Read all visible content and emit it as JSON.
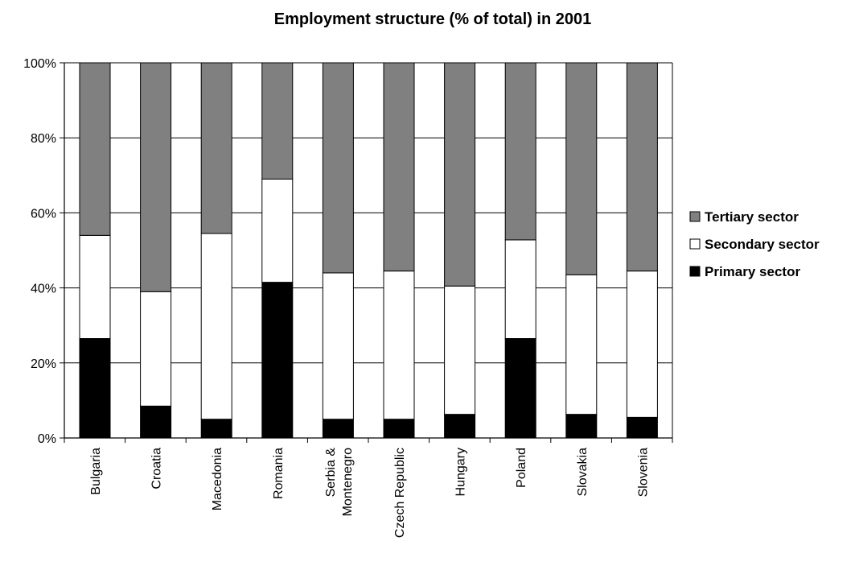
{
  "chart_data": {
    "type": "bar",
    "stacked": true,
    "title": "Employment structure (% of total) in 2001",
    "categories": [
      [
        "Bulgaria"
      ],
      [
        "Croatia"
      ],
      [
        "Macedonia"
      ],
      [
        "Romania"
      ],
      [
        "Serbia &",
        "Montenegro"
      ],
      [
        "Czech Republic"
      ],
      [
        "Hungary"
      ],
      [
        "Poland"
      ],
      [
        "Slovakia"
      ],
      [
        "Slovenia"
      ]
    ],
    "series": [
      {
        "name": "Primary sector",
        "color": "#000000",
        "values": [
          26.5,
          8.5,
          5,
          41.5,
          5,
          5,
          6.3,
          26.5,
          6.3,
          5.5
        ]
      },
      {
        "name": "Secondary sector",
        "color": "#ffffff",
        "values": [
          27.5,
          30.5,
          49.5,
          27.5,
          39,
          39.5,
          34.2,
          26.3,
          37.2,
          39
        ]
      },
      {
        "name": "Tertiary sector",
        "color": "#808080",
        "values": [
          46,
          61,
          45.5,
          31,
          56,
          55.5,
          59.5,
          47.2,
          56.5,
          55.5
        ]
      }
    ],
    "ylim": [
      0,
      100
    ],
    "yticks": [
      "0%",
      "20%",
      "40%",
      "60%",
      "80%",
      "100%"
    ],
    "legend_order": [
      "Tertiary sector",
      "Secondary sector",
      "Primary sector"
    ],
    "legend_position": "right",
    "grid": true
  }
}
